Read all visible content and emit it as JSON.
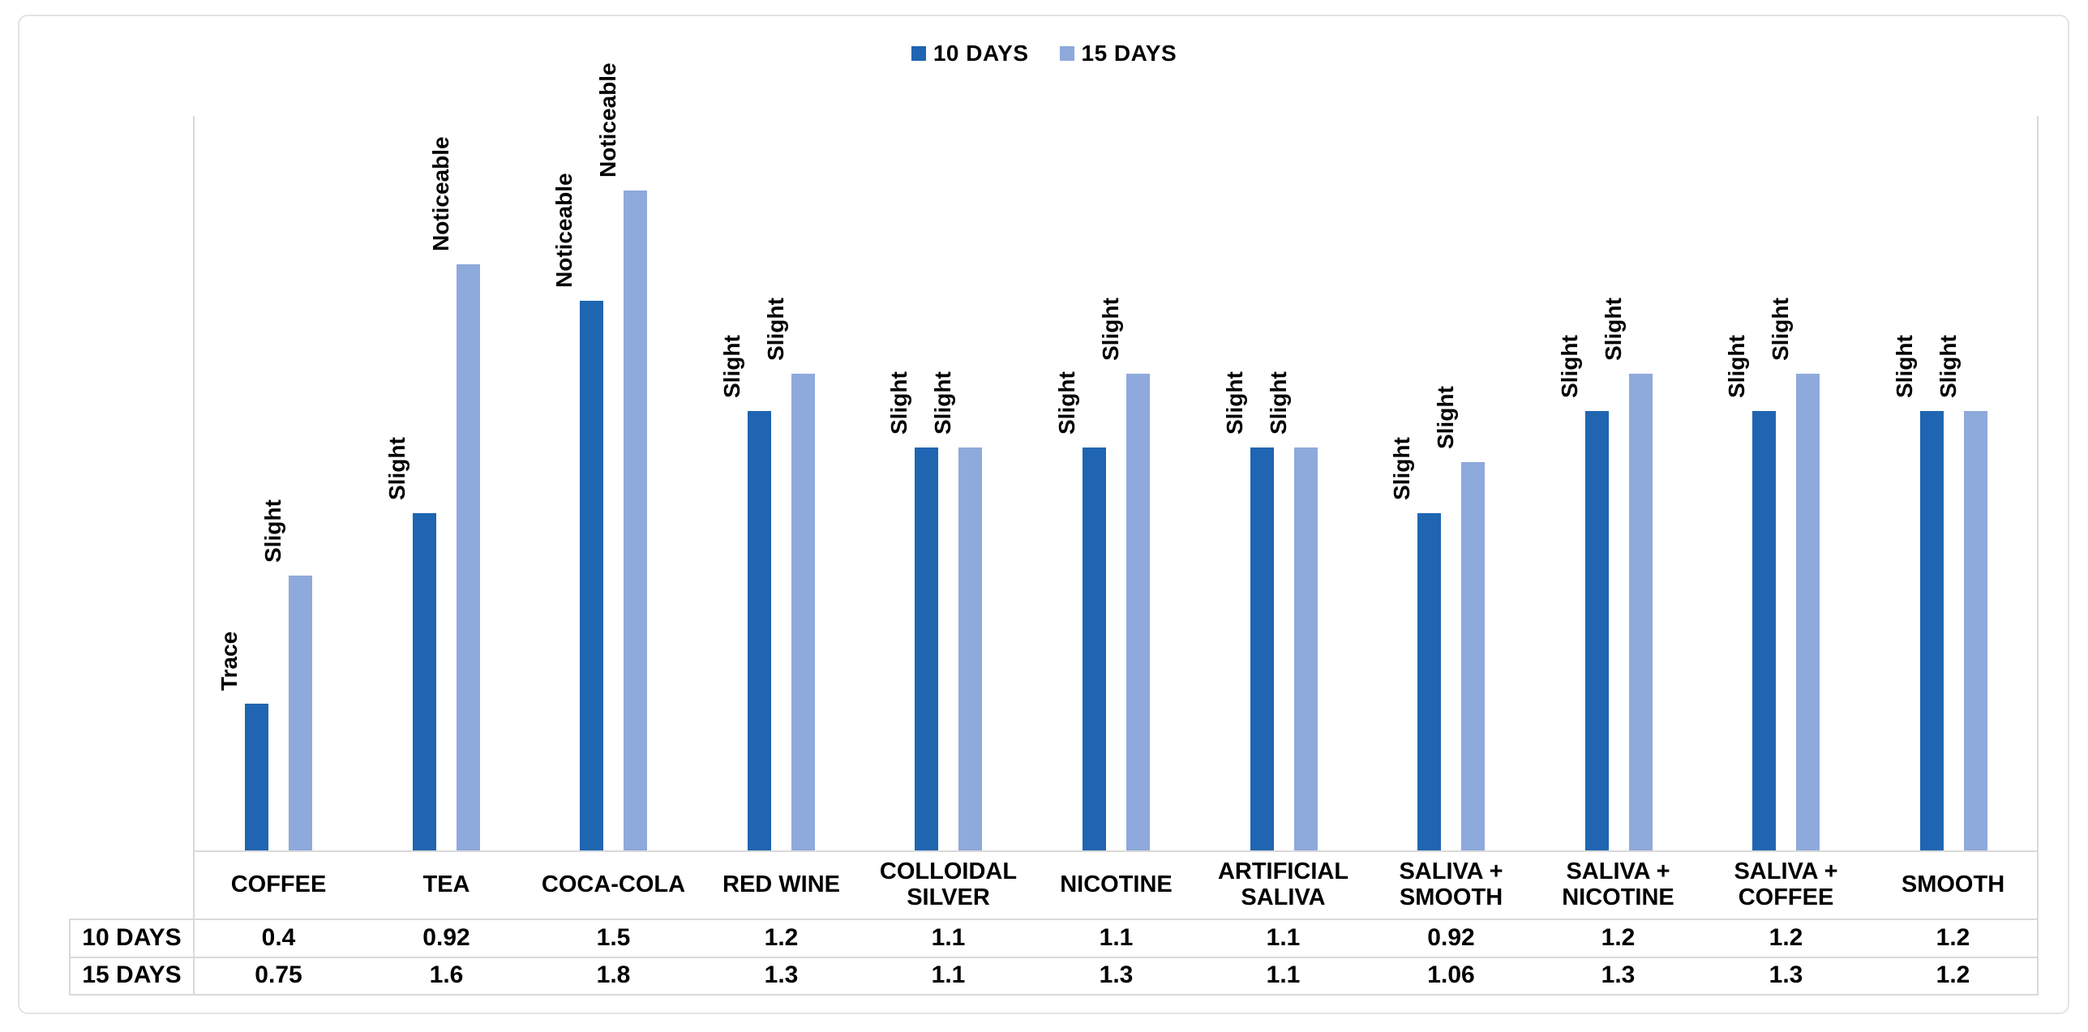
{
  "legend": {
    "items": [
      {
        "label": "10 DAYS",
        "color": "#1f65b1",
        "swatch": "square-icon"
      },
      {
        "label": "15 DAYS",
        "color": "#8ea9db",
        "swatch": "square-icon"
      }
    ]
  },
  "chart_data": {
    "type": "bar",
    "title": "",
    "xlabel": "",
    "ylabel": "",
    "categories": [
      "COFFEE",
      "TEA",
      "COCA-COLA",
      "RED WINE",
      "COLLOIDAL SILVER",
      "NICOTINE",
      "ARTIFICIAL SALIVA",
      "SALIVA + SMOOTH",
      "SALIVA + NICOTINE",
      "SALIVA + COFFEE",
      "SMOOTH"
    ],
    "series": [
      {
        "name": "10 DAYS",
        "color": "#1f65b1",
        "values": [
          0.4,
          0.92,
          1.5,
          1.2,
          1.1,
          1.1,
          1.1,
          0.92,
          1.2,
          1.2,
          1.2
        ],
        "bar_labels": [
          "Trace",
          "Slight",
          "Noticeable",
          "Slight",
          "Slight",
          "Slight",
          "Slight",
          "Slight",
          "Slight",
          "Slight",
          "Slight"
        ]
      },
      {
        "name": "15 DAYS",
        "color": "#8ea9db",
        "values": [
          0.75,
          1.6,
          1.8,
          1.3,
          1.1,
          1.3,
          1.1,
          1.06,
          1.3,
          1.3,
          1.2
        ],
        "bar_labels": [
          "Slight",
          "Noticeable",
          "Noticeable",
          "Slight",
          "Slight",
          "Slight",
          "Slight",
          "Slight",
          "Slight",
          "Slight",
          "Slight"
        ]
      }
    ],
    "ylim": [
      0,
      2
    ],
    "grid": false,
    "y_axis_tick_labels_visible": false,
    "legend_position": "top-center",
    "data_table_below_axis": true,
    "bar_label_rotation_degrees": 90
  }
}
